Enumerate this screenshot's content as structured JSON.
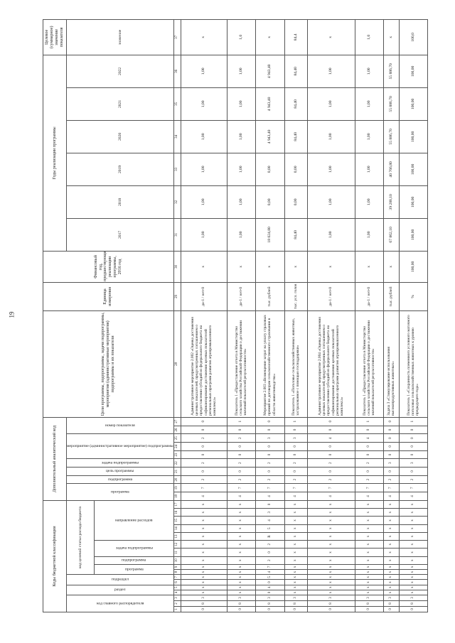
{
  "page_number": "19",
  "header": {
    "budget_codes": "Коды бюджетной классификации",
    "chief_manager_code": "код главного распорядителя",
    "section": "раздел",
    "subsection": "подраздел",
    "target_article_code": "код целевой статьи расхода бюджета",
    "program": "программа",
    "subprogram": "подпрограмма",
    "subprogram_task": "задача подпрограммы",
    "expense_direction": "направление расходов",
    "additional_code": "Дополнительный аналитический код",
    "add_program": "программа",
    "add_subprogram": "подпрограмма",
    "add_program_goal": "цель программы",
    "add_subprogram_task": "задача подпрограммы",
    "add_activity": "мероприятие (административное мероприятие) подпрограммы",
    "add_indicator_number": "номер показателя",
    "goals": "Цели программы, подпрограммы, задачи подпрограммы, мероприятия (административные мероприятия) подпрограммы и их показатели",
    "unit": "Единица измерения",
    "prev_year": "Финансовый год, предшествующий реализации программы, 2016 год",
    "years_group": "Годы реализации программы",
    "years": [
      "2017",
      "2018",
      "2019",
      "2020",
      "2021",
      "2022"
    ],
    "target_value": "Целевое (суммарное) значение показателя",
    "value": "значение"
  },
  "column_numbers": [
    "1",
    "2",
    "3",
    "4",
    "5",
    "6",
    "7",
    "8",
    "9",
    "10",
    "11",
    "12",
    "13",
    "14",
    "15",
    "16",
    "17",
    "18",
    "19",
    "20",
    "21",
    "22",
    "23",
    "24",
    "25",
    "26",
    "27",
    "28",
    "29",
    "30",
    "31",
    "32",
    "33",
    "34",
    "35",
    "36",
    "37"
  ],
  "rows": [
    {
      "codes": [
        "0",
        "8",
        "3",
        "x",
        "x",
        "x",
        "x",
        "x",
        "x",
        "x",
        "x",
        "x",
        "x",
        "x",
        "x",
        "x",
        "x",
        "4",
        "7",
        "2",
        "0",
        "2",
        "0",
        "0",
        "2",
        "0",
        "0"
      ],
      "description": "Административное мероприятие 2.002 «Оценка достижения целевых показателей, предусмотренных соглашением о предоставлении субсидий из федерального бюджета на софинансирование достижения целевых показателей региональных программ развития агропромышленного комплекса»",
      "unit": "да-1 / нет-0",
      "prev": "x",
      "years": [
        "1,00",
        "1,00",
        "1,00",
        "1,00",
        "1,00",
        "1,00"
      ],
      "target": "x"
    },
    {
      "codes": [
        "0",
        "8",
        "3",
        "x",
        "x",
        "x",
        "x",
        "x",
        "x",
        "x",
        "x",
        "x",
        "x",
        "x",
        "x",
        "x",
        "x",
        "4",
        "7",
        "2",
        "0",
        "2",
        "0",
        "0",
        "2",
        "0",
        "1"
      ],
      "description": "Показатель 1 «Предоставление отчета в Министерство сельского хозяйства Российской Федерации о достижении значений показателей результативности»",
      "unit": "да-1 / нет-0",
      "prev": "x",
      "years": [
        "1,00",
        "1,00",
        "1,00",
        "1,00",
        "1,00",
        "1,00"
      ],
      "target": "1,0"
    },
    {
      "codes": [
        "0",
        "8",
        "3",
        "0",
        "4",
        "0",
        "5",
        "4",
        "7",
        "2",
        "0",
        "2",
        "R",
        "5",
        "4",
        "3",
        "0",
        "4",
        "7",
        "2",
        "0",
        "2",
        "0",
        "0",
        "3",
        "0",
        "0"
      ],
      "description": "Мероприятие 2.003 «Возмещение затрат на уплату страховых премий по договорам сельскохозяйственного страхования в области животноводства»",
      "unit": "тыс. рублей",
      "prev": "x",
      "years": [
        "18 024,80",
        "0,00",
        "0,00",
        "4 943,40",
        "4 943,40",
        "4 943,40"
      ],
      "target": "x"
    },
    {
      "codes": [
        "0",
        "8",
        "3",
        "x",
        "x",
        "x",
        "x",
        "x",
        "x",
        "x",
        "x",
        "x",
        "x",
        "x",
        "x",
        "x",
        "x",
        "4",
        "7",
        "2",
        "0",
        "2",
        "0",
        "0",
        "3",
        "0",
        "1"
      ],
      "description": "Показатель 1 «Поголовье сельскохозяйственных животных, застрахованное с помощью господдержки»",
      "unit": "тыс. усл. голов",
      "prev": "x",
      "years": [
        "84,40",
        "0,00",
        "0,00",
        "84,40",
        "84,40",
        "84,40"
      ],
      "target": "84,4"
    },
    {
      "codes": [
        "0",
        "8",
        "3",
        "x",
        "x",
        "x",
        "x",
        "x",
        "x",
        "x",
        "x",
        "x",
        "x",
        "x",
        "x",
        "x",
        "x",
        "4",
        "7",
        "2",
        "0",
        "2",
        "0",
        "0",
        "4",
        "0",
        "0"
      ],
      "description": "Административное мероприятие 2.004 «Оценка достижения целевых показателей, предусмотренных соглашением о предоставлении субсидий из федерального бюджета на софинансирование достижения целевых показателей региональных программ развития агропромышленного комплекса»",
      "unit": "да-1 / нет-0",
      "prev": "x",
      "years": [
        "1,00",
        "1,00",
        "1,00",
        "1,00",
        "1,00",
        "1,00"
      ],
      "target": "x"
    },
    {
      "codes": [
        "0",
        "8",
        "3",
        "x",
        "x",
        "x",
        "x",
        "x",
        "x",
        "x",
        "x",
        "x",
        "x",
        "x",
        "x",
        "x",
        "x",
        "4",
        "7",
        "2",
        "0",
        "2",
        "0",
        "0",
        "4",
        "0",
        "1"
      ],
      "description": "Показатель 1 «Предоставление отчета в Министерство сельского хозяйства Российской Федерации о достижении значений показателей результативности»",
      "unit": "да-1 / нет-0",
      "prev": "x",
      "years": [
        "1,00",
        "1,00",
        "1,00",
        "1,00",
        "1,00",
        "1,00"
      ],
      "target": "1,0"
    },
    {
      "codes": [
        "0",
        "8",
        "3",
        "x",
        "x",
        "x",
        "x",
        "x",
        "x",
        "x",
        "x",
        "x",
        "x",
        "x",
        "x",
        "x",
        "x",
        "4",
        "7",
        "2",
        "0",
        "3",
        "0",
        "0",
        "0",
        "0",
        "0"
      ],
      "description": "Задача 3 «Стимулирование использования высокопродуктивных животных»",
      "unit": "тыс. рублей",
      "prev": "x",
      "years": [
        "67 862,10",
        "39 288,10",
        "40 766,80",
        "55 886,70",
        "55 886,70",
        "55 886,70"
      ],
      "target": "x"
    },
    {
      "codes": [
        "0",
        "8",
        "3",
        "x",
        "x",
        "x",
        "x",
        "x",
        "x",
        "x",
        "x",
        "x",
        "x",
        "x",
        "x",
        "x",
        "x",
        "4",
        "7",
        "2",
        "0",
        "3",
        "0",
        "0",
        "0",
        "0",
        "1"
      ],
      "description": "Показатель 1 «Сохранность племенного условного маточного поголовья сельскохозяйственных животных к уровню предыдущего года»",
      "unit": "%",
      "prev": "100,00",
      "years": [
        "100,00",
        "100,00",
        "100,00",
        "100,00",
        "100,00",
        "100,00"
      ],
      "target": "100,0"
    }
  ]
}
